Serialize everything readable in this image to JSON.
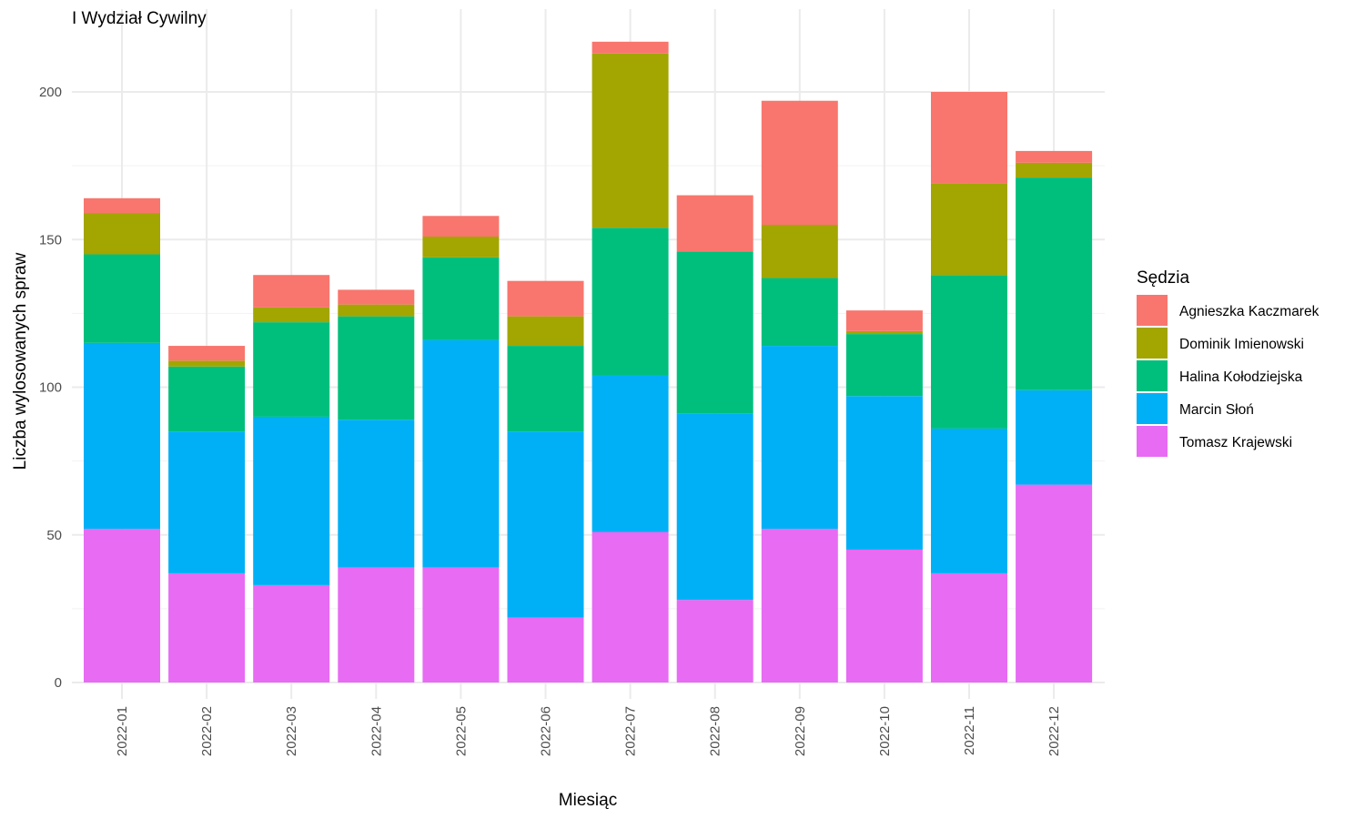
{
  "chart_data": {
    "type": "bar",
    "stacked": true,
    "title": "I Wydział Cywilny",
    "xlabel": "Miesiąc",
    "ylabel": "Liczba wylosowanych spraw",
    "ylim": [
      0,
      217
    ],
    "yticks": [
      0,
      50,
      100,
      150,
      200
    ],
    "grid": true,
    "legend_position": "right",
    "legend_title": "Sędzia",
    "categories": [
      "2022-01",
      "2022-02",
      "2022-03",
      "2022-04",
      "2022-05",
      "2022-06",
      "2022-07",
      "2022-08",
      "2022-09",
      "2022-10",
      "2022-11",
      "2022-12"
    ],
    "series": [
      {
        "name": "Tomasz Krajewski",
        "color": "#E76BF3",
        "values": [
          52,
          37,
          33,
          39,
          39,
          22,
          51,
          28,
          52,
          45,
          37,
          67
        ]
      },
      {
        "name": "Marcin Słoń",
        "color": "#00B0F6",
        "values": [
          63,
          48,
          57,
          50,
          77,
          63,
          53,
          63,
          62,
          52,
          49,
          32
        ]
      },
      {
        "name": "Halina Kołodziejska",
        "color": "#00BF7D",
        "values": [
          30,
          22,
          32,
          35,
          28,
          29,
          50,
          55,
          23,
          21,
          52,
          72
        ]
      },
      {
        "name": "Dominik Imienowski",
        "color": "#A3A500",
        "values": [
          14,
          2,
          5,
          4,
          7,
          10,
          59,
          0,
          18,
          1,
          31,
          5
        ]
      },
      {
        "name": "Agnieszka Kaczmarek",
        "color": "#F8766D",
        "values": [
          5,
          5,
          11,
          5,
          7,
          12,
          4,
          19,
          42,
          7,
          31,
          4
        ]
      }
    ],
    "legend_order": [
      "Agnieszka Kaczmarek",
      "Dominik Imienowski",
      "Halina Kołodziejska",
      "Marcin Słoń",
      "Tomasz Krajewski"
    ]
  }
}
